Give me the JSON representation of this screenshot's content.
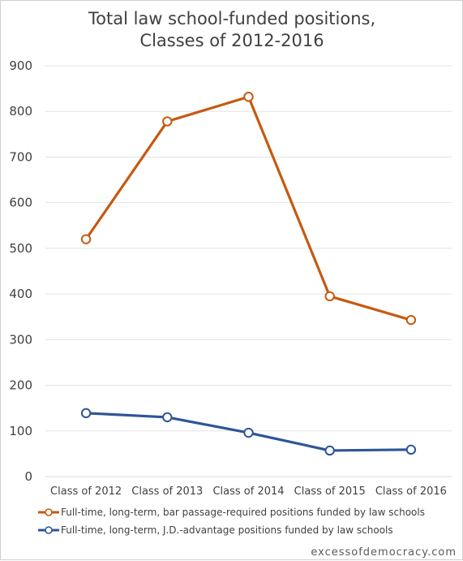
{
  "chart_data": {
    "type": "line",
    "title_lines": [
      "Total law school-funded positions,",
      "Classes of 2012-2016"
    ],
    "categories": [
      "Class of 2012",
      "Class of 2013",
      "Class of 2014",
      "Class of 2015",
      "Class of 2016"
    ],
    "ylim": [
      0,
      900
    ],
    "yticks": [
      0,
      100,
      200,
      300,
      400,
      500,
      600,
      700,
      800,
      900
    ],
    "grid": true,
    "legend_position": "bottom",
    "series": [
      {
        "name": "Full-time, long-term, bar passage-required positions funded by law schools",
        "color": "#C55A11",
        "values": [
          520,
          778,
          832,
          395,
          343
        ]
      },
      {
        "name": "Full-time, long-term, J.D.-advantage positions funded by law schools",
        "color": "#2F5597",
        "values": [
          139,
          130,
          96,
          57,
          59
        ]
      }
    ]
  },
  "credit": "excessofdemocracy.com"
}
